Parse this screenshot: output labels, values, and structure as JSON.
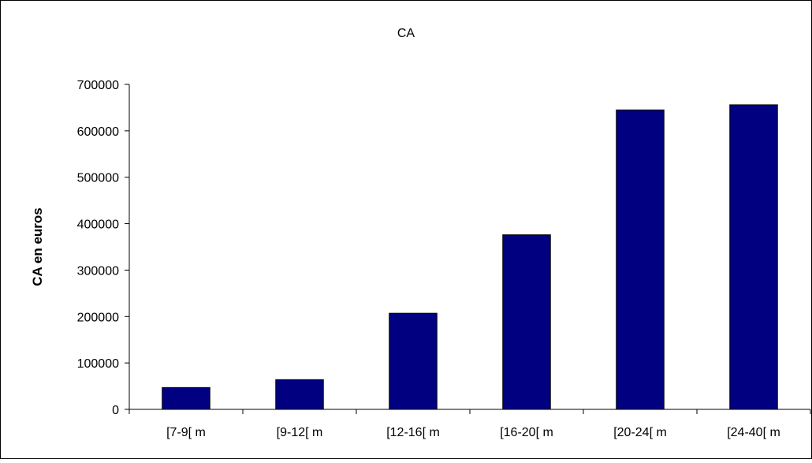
{
  "chart_data": {
    "type": "bar",
    "title": "CA",
    "xlabel": "",
    "ylabel": "CA en euros",
    "categories": [
      "[7-9[ m",
      "[9-12[ m",
      "[12-16[ m",
      "[16-20[ m",
      "[20-24[ m",
      "[24-40[ m"
    ],
    "values": [
      47000,
      64000,
      207000,
      376000,
      645000,
      656000
    ],
    "ylim": [
      0,
      700000
    ],
    "yticks": [
      "0",
      "100000",
      "200000",
      "300000",
      "400000",
      "500000",
      "600000",
      "700000"
    ],
    "grid": false,
    "legend": "none",
    "bar_color": "#000080"
  }
}
